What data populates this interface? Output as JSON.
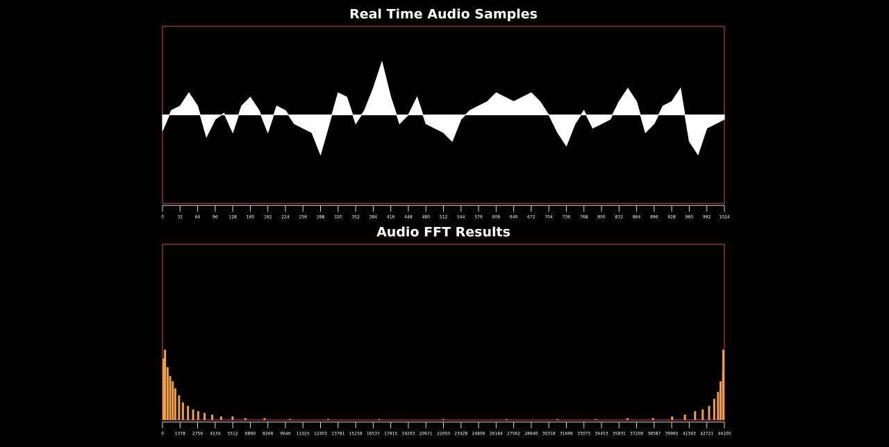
{
  "chart_data": [
    {
      "type": "area",
      "title": "Real Time Audio Samples",
      "color": "#ffffff",
      "frame_color": "#6b2430",
      "x": [
        0,
        16,
        32,
        48,
        64,
        80,
        96,
        112,
        128,
        144,
        160,
        176,
        192,
        208,
        224,
        240,
        256,
        272,
        288,
        304,
        320,
        336,
        352,
        368,
        384,
        400,
        416,
        432,
        448,
        464,
        480,
        496,
        512,
        528,
        544,
        560,
        576,
        592,
        608,
        624,
        640,
        656,
        672,
        688,
        704,
        720,
        736,
        752,
        768,
        784,
        800,
        816,
        832,
        848,
        864,
        880,
        896,
        912,
        928,
        944,
        960,
        976,
        992,
        1008,
        1024
      ],
      "values": [
        -0.18,
        0.05,
        0.1,
        0.25,
        0.1,
        -0.25,
        -0.05,
        0.02,
        -0.2,
        0.1,
        0.2,
        0.05,
        -0.2,
        0.1,
        0.05,
        -0.1,
        -0.15,
        -0.2,
        -0.45,
        -0.1,
        0.25,
        0.2,
        -0.1,
        0.05,
        0.3,
        0.6,
        0.2,
        -0.1,
        0.0,
        0.2,
        -0.1,
        -0.15,
        -0.2,
        -0.3,
        -0.05,
        0.05,
        0.1,
        0.15,
        0.25,
        0.2,
        0.15,
        0.2,
        0.25,
        0.15,
        0.0,
        -0.2,
        -0.35,
        -0.1,
        0.05,
        -0.15,
        -0.1,
        -0.05,
        0.15,
        0.3,
        0.15,
        -0.2,
        -0.1,
        0.1,
        0.15,
        0.3,
        -0.3,
        -0.45,
        -0.15,
        -0.1,
        -0.05
      ],
      "xlim": [
        0,
        1024
      ],
      "ylim": [
        -1,
        1
      ],
      "xticks": [
        0,
        32,
        64,
        96,
        128,
        160,
        192,
        224,
        256,
        288,
        320,
        352,
        384,
        416,
        448,
        480,
        512,
        544,
        576,
        608,
        640,
        672,
        704,
        736,
        768,
        800,
        832,
        864,
        896,
        928,
        960,
        992,
        1024
      ]
    },
    {
      "type": "bar",
      "title": "Audio FFT Results",
      "color": "#f0a040",
      "frame_color": "#6b2430",
      "x": [
        0,
        200,
        400,
        600,
        800,
        1000,
        1300,
        1600,
        2000,
        2400,
        2800,
        3300,
        3900,
        4600,
        5500,
        6500,
        8000,
        10000,
        13000,
        17000,
        22050,
        27000,
        31000,
        34000,
        36500,
        38500,
        40000,
        41000,
        41800,
        42400,
        42900,
        43300,
        43600,
        43800,
        44000,
        44100
      ],
      "values": [
        35,
        40,
        30,
        25,
        22,
        18,
        14,
        10,
        8,
        6,
        5,
        4,
        3,
        2,
        2,
        1,
        1,
        0.5,
        0.5,
        0.5,
        0.5,
        0.5,
        0.5,
        0.5,
        1,
        1,
        2,
        3,
        5,
        6,
        8,
        12,
        16,
        22,
        28,
        40
      ],
      "xlim": [
        0,
        44100
      ],
      "ylim": [
        0,
        100
      ],
      "xticks": [
        0,
        1378,
        2756,
        4134,
        5512,
        6890,
        8268,
        9646,
        11025,
        12403,
        13781,
        15159,
        16537,
        17915,
        19293,
        20671,
        22050,
        23428,
        24806,
        26184,
        27562,
        28940,
        30318,
        31696,
        33075,
        34453,
        35831,
        37209,
        38587,
        39965,
        41343,
        42721,
        44100
      ]
    }
  ]
}
